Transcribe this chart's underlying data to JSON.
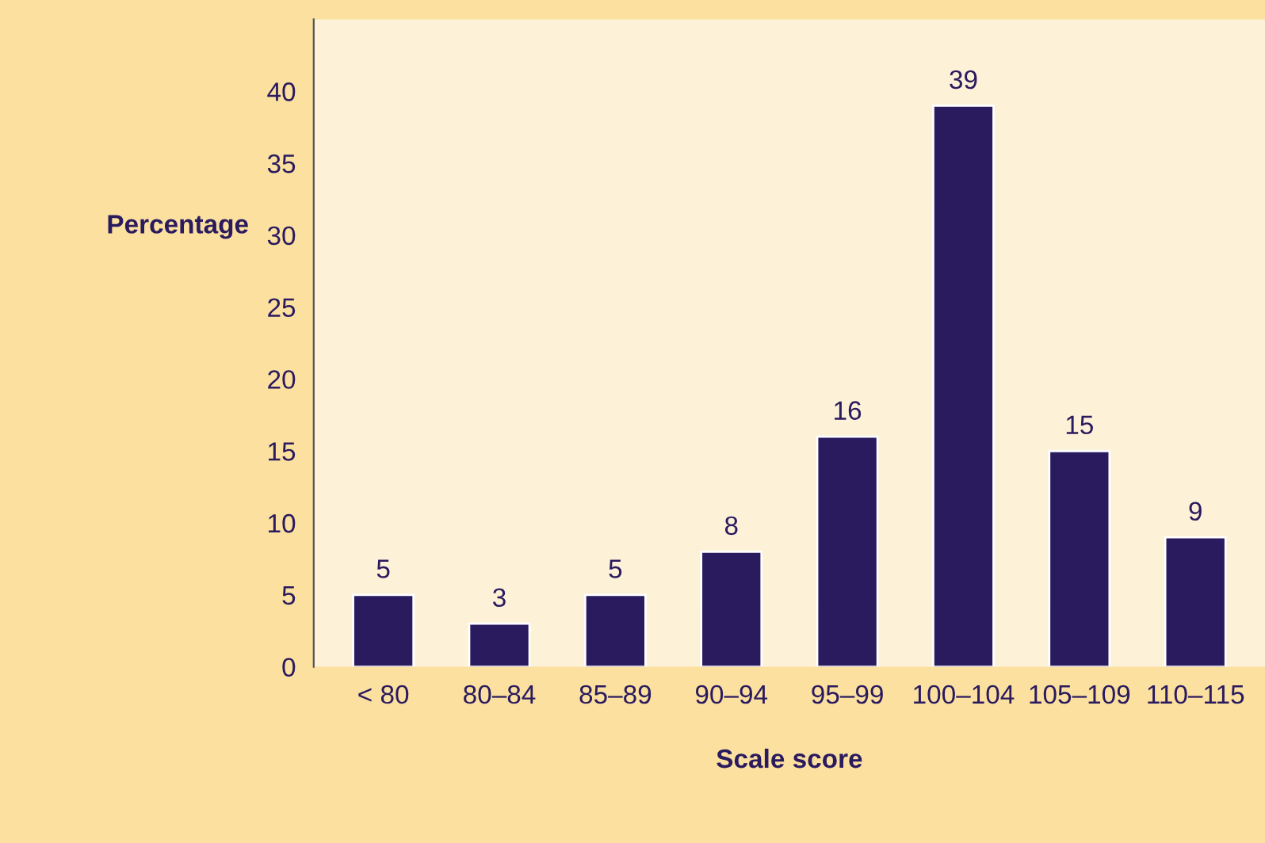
{
  "chart_data": {
    "type": "bar",
    "xlabel": "Scale score",
    "ylabel": "Percentage",
    "categories": [
      "< 80",
      "80–84",
      "85–89",
      "90–94",
      "95–99",
      "100–104",
      "105–109",
      "110–115"
    ],
    "values": [
      5,
      3,
      5,
      8,
      16,
      39,
      15,
      9
    ],
    "color": "#2a1a5e",
    "ylim": [
      0,
      45
    ],
    "yticks": [
      0,
      5,
      10,
      15,
      20,
      25,
      30,
      35,
      40
    ],
    "grid": false,
    "data_labels": true
  }
}
